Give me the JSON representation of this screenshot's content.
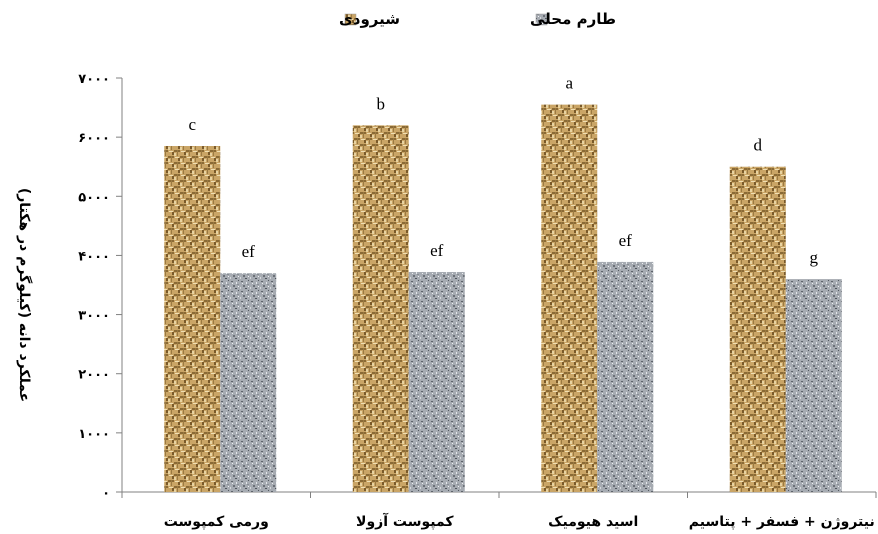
{
  "chart_data": {
    "type": "bar",
    "categories": [
      "ورمی کمپوست",
      "کمپوست آزولا",
      "اسید هیومیک",
      "نیتروژن + فسفر + پتاسیم"
    ],
    "series": [
      {
        "name": "شیرودی",
        "values": [
          5850,
          6200,
          6550,
          5500
        ],
        "letters": [
          "c",
          "b",
          "a",
          "d"
        ],
        "color": "#c9a25e",
        "pattern": "weave-tan"
      },
      {
        "name": "طارم محلی",
        "values": [
          3700,
          3720,
          3890,
          3600
        ],
        "letters": [
          "ef",
          "ef",
          "ef",
          "g"
        ],
        "color": "#9fa4ab",
        "pattern": "granite-gray"
      }
    ],
    "ylabel": "عملکرد دانه (کیلوگرم در هکتار)",
    "xlabel": "",
    "ylim": [
      0,
      7000
    ],
    "yticks": [
      0,
      1000,
      2000,
      3000,
      4000,
      5000,
      6000,
      7000
    ],
    "ytick_labels": [
      "۰",
      "۱۰۰۰",
      "۲۰۰۰",
      "۳۰۰۰",
      "۴۰۰۰",
      "۵۰۰۰",
      "۶۰۰۰",
      "۷۰۰۰"
    ],
    "legend_position": "top-center",
    "grid": false
  }
}
